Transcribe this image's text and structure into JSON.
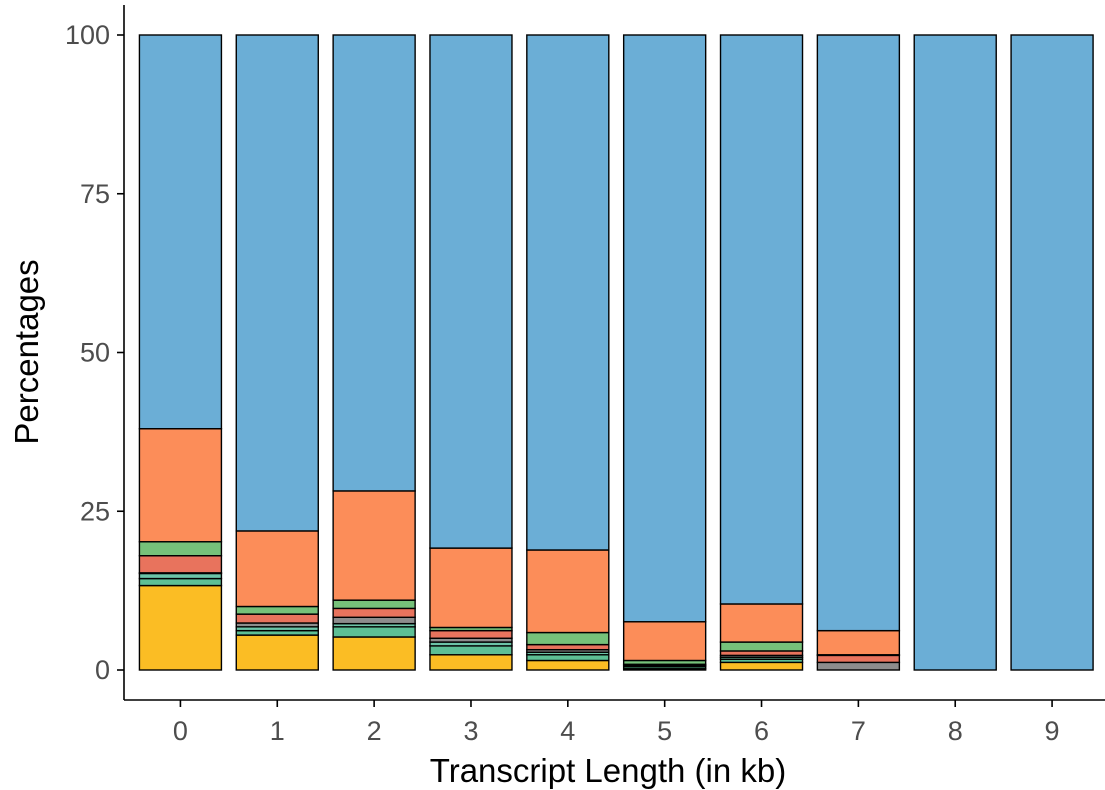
{
  "chart_data": {
    "type": "bar",
    "stacked": true,
    "xlabel": "Transcript Length (in kb)",
    "ylabel": "Percentages",
    "categories": [
      "0",
      "1",
      "2",
      "3",
      "4",
      "5",
      "6",
      "7",
      "8",
      "9"
    ],
    "y_ticks": [
      "0",
      "25",
      "50",
      "75",
      "100"
    ],
    "ylim": [
      0,
      100
    ],
    "grid": false,
    "legend": "none",
    "series": [
      {
        "color": "#fbbd24",
        "values": [
          13.3,
          5.5,
          5.2,
          2.4,
          1.5,
          0.2,
          1.2,
          0.0,
          0,
          0
        ]
      },
      {
        "color": "#5dbf95",
        "values": [
          1.1,
          0.7,
          1.6,
          1.4,
          0.9,
          0.3,
          0.5,
          0.0,
          0,
          0
        ]
      },
      {
        "color": "#6cc4a7",
        "values": [
          0.8,
          0.6,
          0.5,
          0.6,
          0.4,
          0.2,
          0.3,
          0.0,
          0,
          0
        ]
      },
      {
        "color": "#8d8d8d",
        "values": [
          0.1,
          0.6,
          1.0,
          0.6,
          0.4,
          0.1,
          0.3,
          1.2,
          0,
          0
        ]
      },
      {
        "color": "#e8735d",
        "values": [
          2.7,
          1.4,
          1.4,
          1.2,
          0.8,
          0.1,
          0.7,
          1.1,
          0,
          0
        ]
      },
      {
        "color": "#76c17a",
        "values": [
          2.2,
          1.2,
          1.3,
          0.5,
          1.9,
          0.6,
          1.4,
          0.1,
          0,
          0
        ]
      },
      {
        "color": "#fc8d59",
        "values": [
          17.8,
          11.9,
          17.2,
          12.5,
          13.0,
          6.1,
          6.0,
          3.8,
          0,
          0
        ]
      },
      {
        "color": "#6baed6",
        "values": [
          62.0,
          78.1,
          71.8,
          80.8,
          81.1,
          92.4,
          89.6,
          93.8,
          100,
          100
        ]
      }
    ]
  }
}
